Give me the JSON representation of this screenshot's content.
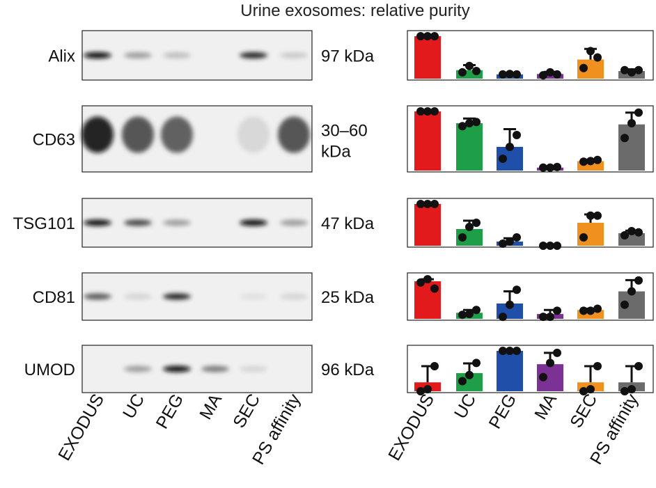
{
  "figure": {
    "title": "Urine exosomes: relative purity"
  },
  "lanes": [
    "EXODUS",
    "UC",
    "PEG",
    "MA",
    "SEC",
    "PS affinity"
  ],
  "colors": {
    "EXODUS": "#e31a1c",
    "UC": "#1f9e48",
    "PEG": "#1f4fa8",
    "MA": "#7b3294",
    "SEC": "#f0901e",
    "PS affinity": "#6b6b6b"
  },
  "blots": [
    {
      "marker": "Alix",
      "size_label": "97 kDa",
      "band_intensity": [
        1.0,
        0.35,
        0.2,
        0.0,
        0.9,
        0.15
      ]
    },
    {
      "marker": "CD63",
      "size_label": "30–60 kDa",
      "band_intensity": [
        1.0,
        0.75,
        0.7,
        0.0,
        0.1,
        0.75
      ]
    },
    {
      "marker": "TSG101",
      "size_label": "47 kDa",
      "band_intensity": [
        1.0,
        0.75,
        0.35,
        0.0,
        1.0,
        0.35
      ]
    },
    {
      "marker": "CD81",
      "size_label": "25 kDa",
      "band_intensity": [
        0.65,
        0.1,
        0.9,
        0.0,
        0.05,
        0.1
      ]
    },
    {
      "marker": "UMOD",
      "size_label": "96 kDa",
      "band_intensity": [
        0.0,
        0.35,
        1.0,
        0.5,
        0.1,
        0.0
      ]
    }
  ],
  "chart_data": {
    "type": "bar",
    "title": "Urine exosomes: relative purity",
    "categories": [
      "EXODUS",
      "UC",
      "PEG",
      "MA",
      "SEC",
      "PS affinity"
    ],
    "xlabel": "",
    "ylabel": "",
    "ylim": [
      0,
      1
    ],
    "grid": false,
    "legend": "none",
    "panels": [
      {
        "marker": "Alix",
        "values": [
          1.0,
          0.2,
          0.1,
          0.11,
          0.45,
          0.18
        ],
        "error": [
          0.0,
          0.12,
          0.02,
          0.05,
          0.25,
          0.04
        ],
        "points": [
          [
            1.0,
            1.0,
            1.0
          ],
          [
            0.15,
            0.3,
            0.18
          ],
          [
            0.1,
            0.11,
            0.1
          ],
          [
            0.08,
            0.15,
            0.1
          ],
          [
            0.25,
            0.65,
            0.5
          ],
          [
            0.2,
            0.15,
            0.2
          ]
        ]
      },
      {
        "marker": "CD63",
        "values": [
          1.0,
          0.8,
          0.4,
          0.05,
          0.16,
          0.78
        ],
        "error": [
          0.0,
          0.08,
          0.3,
          0.02,
          0.02,
          0.2
        ],
        "points": [
          [
            1.0,
            1.0,
            1.0
          ],
          [
            0.75,
            0.8,
            0.82
          ],
          [
            0.2,
            0.4,
            0.6
          ],
          [
            0.05,
            0.05,
            0.06
          ],
          [
            0.15,
            0.16,
            0.18
          ],
          [
            0.55,
            0.8,
            0.98
          ]
        ]
      },
      {
        "marker": "TSG101",
        "values": [
          1.0,
          0.4,
          0.1,
          0.0,
          0.55,
          0.3
        ],
        "error": [
          0.0,
          0.2,
          0.08,
          0.0,
          0.2,
          0.06
        ],
        "points": [
          [
            1.0,
            1.0,
            1.0
          ],
          [
            0.2,
            0.45,
            0.55
          ],
          [
            0.05,
            0.1,
            0.2
          ],
          [
            0.0,
            0.0,
            0.0
          ],
          [
            0.2,
            0.72,
            0.72
          ],
          [
            0.25,
            0.35,
            0.32
          ]
        ]
      },
      {
        "marker": "CD81",
        "values": [
          0.93,
          0.15,
          0.38,
          0.12,
          0.22,
          0.68
        ],
        "error": [
          0.05,
          0.07,
          0.3,
          0.1,
          0.03,
          0.28
        ],
        "points": [
          [
            0.9,
            0.98,
            0.75
          ],
          [
            0.1,
            0.12,
            0.22
          ],
          [
            0.05,
            0.35,
            0.72
          ],
          [
            0.05,
            0.05,
            0.2
          ],
          [
            0.2,
            0.2,
            0.25
          ],
          [
            0.35,
            0.68,
            0.95
          ]
        ]
      },
      {
        "marker": "UMOD",
        "values": [
          0.22,
          0.45,
          1.0,
          0.67,
          0.22,
          0.22
        ],
        "error": [
          0.4,
          0.24,
          0.0,
          0.28,
          0.4,
          0.4
        ],
        "points": [
          [
            0.0,
            0.05,
            0.62
          ],
          [
            0.25,
            0.4,
            0.7
          ],
          [
            1.0,
            1.0,
            1.0
          ],
          [
            0.35,
            0.7,
            0.95
          ],
          [
            0.0,
            0.05,
            0.62
          ],
          [
            0.0,
            0.05,
            0.62
          ]
        ]
      }
    ]
  }
}
